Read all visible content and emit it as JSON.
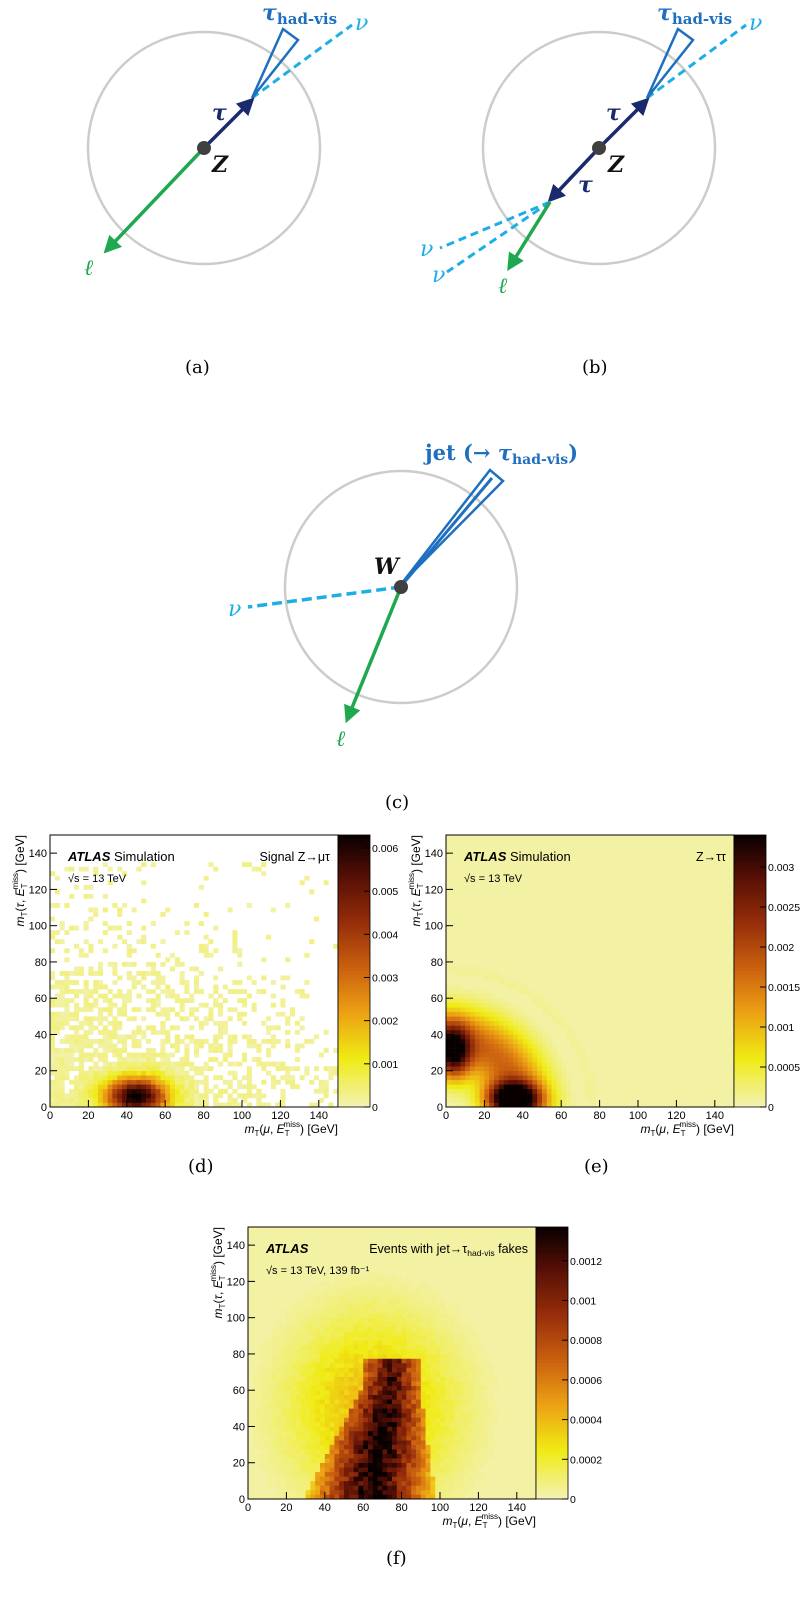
{
  "diagrams": {
    "a": {
      "caption": "(a)",
      "labels": {
        "tau_vis": "τ",
        "tau_vis_sub": "had-vis",
        "nu": "ν",
        "tau": "τ",
        "boson": "Z",
        "lepton": "ℓ"
      }
    },
    "b": {
      "caption": "(b)",
      "labels": {
        "tau_vis": "τ",
        "tau_vis_sub": "had-vis",
        "nu_top": "ν",
        "tau_upper": "τ",
        "boson": "Z",
        "tau_lower": "τ",
        "nu_left1": "ν",
        "nu_left2": "ν",
        "lepton": "ℓ"
      }
    },
    "c": {
      "caption": "(c)",
      "labels": {
        "jet_prefix": "jet (→ ",
        "tau_vis": "τ",
        "tau_vis_sub": "had-vis",
        "jet_suffix": ")",
        "boson": "W",
        "nu": "ν",
        "lepton": "ℓ"
      }
    }
  },
  "colors": {
    "circle": "#cccccc",
    "tau_dark": "#1a2a6c",
    "tau_vis_blue": "#1f6fbf",
    "nu_cyan": "#1eaee6",
    "lepton_green": "#1fa84f",
    "vertex": "#404040"
  },
  "chart_data": [
    {
      "panel": "d",
      "caption": "(d)",
      "type": "heatmap",
      "experiment": "ATLAS",
      "experiment_suffix": "Simulation",
      "energy": "√s = 13 TeV",
      "process_label": "Signal Z→μτ",
      "xlabel": "m_T(μ, E_T^miss) [GeV]",
      "ylabel": "m_T(τ, E_T^miss) [GeV]",
      "xlim": [
        0,
        150
      ],
      "ylim": [
        0,
        150
      ],
      "xticks": [
        0,
        20,
        40,
        60,
        80,
        100,
        120,
        140
      ],
      "yticks": [
        0,
        20,
        40,
        60,
        80,
        100,
        120,
        140
      ],
      "zlim": [
        0,
        0.0063
      ],
      "zticks": [
        "0",
        "0.001",
        "0.002",
        "0.003",
        "0.004",
        "0.005",
        "0.006"
      ],
      "zvalues": [
        0,
        0.001,
        0.002,
        0.003,
        0.004,
        0.005,
        0.006
      ],
      "peaks": [
        {
          "x": 45,
          "y": 6,
          "sx": 11,
          "sy": 7,
          "amp": 0.0063
        }
      ],
      "bg_level": 0.0003,
      "bg_extent": [
        150,
        135
      ],
      "sparse": true
    },
    {
      "panel": "e",
      "caption": "(e)",
      "type": "heatmap",
      "experiment": "ATLAS",
      "experiment_suffix": "Simulation",
      "energy": "√s = 13 TeV",
      "process_label": "Z→ττ",
      "xlabel": "m_T(μ, E_T^miss) [GeV]",
      "ylabel": "m_T(τ, E_T^miss) [GeV]",
      "xlim": [
        0,
        150
      ],
      "ylim": [
        0,
        150
      ],
      "xticks": [
        0,
        20,
        40,
        60,
        80,
        100,
        120,
        140
      ],
      "yticks": [
        0,
        20,
        40,
        60,
        80,
        100,
        120,
        140
      ],
      "zlim": [
        0,
        0.0034
      ],
      "zticks": [
        "0",
        "0.0005",
        "0.001",
        "0.0015",
        "0.002",
        "0.0025",
        "0.003"
      ],
      "zvalues": [
        0,
        0.0005,
        0.001,
        0.0015,
        0.002,
        0.0025,
        0.003
      ],
      "peaks": [
        {
          "x": 35,
          "y": 5,
          "sx": 9,
          "sy": 6,
          "amp": 0.0034
        },
        {
          "x": 4,
          "y": 30,
          "sx": 6,
          "sy": 10,
          "amp": 0.0026
        }
      ],
      "band_radius": 38,
      "band_width": 12,
      "band_amp": 0.0017,
      "bg_level": 2e-05,
      "sparse": false
    },
    {
      "panel": "f",
      "caption": "(f)",
      "type": "heatmap",
      "experiment": "ATLAS",
      "process_label": "Events with jet→τ",
      "process_sub": "had-vis",
      "process_suffix": " fakes",
      "energy": "√s = 13 TeV, 139 fb⁻¹",
      "xlabel": "m_T(μ, E_T^miss) [GeV]",
      "ylabel": "m_T(τ, E_T^miss) [GeV]",
      "xlim": [
        0,
        150
      ],
      "ylim": [
        0,
        150
      ],
      "xticks": [
        0,
        20,
        40,
        60,
        80,
        100,
        120,
        140
      ],
      "yticks": [
        0,
        20,
        40,
        60,
        80,
        100,
        120,
        140
      ],
      "zlim": [
        0,
        0.00137
      ],
      "zticks": [
        "0",
        "0.0002",
        "0.0004",
        "0.0006",
        "0.0008",
        "0.001",
        "0.0012"
      ],
      "zvalues": [
        0,
        0.0002,
        0.0004,
        0.0006,
        0.0008,
        0.001,
        0.0012
      ],
      "triangle": {
        "apex": [
          75,
          65
        ],
        "base_left": 35,
        "base_right": 92,
        "amp": 0.00128
      },
      "bg_level": 0.0002,
      "sparse": false
    }
  ]
}
